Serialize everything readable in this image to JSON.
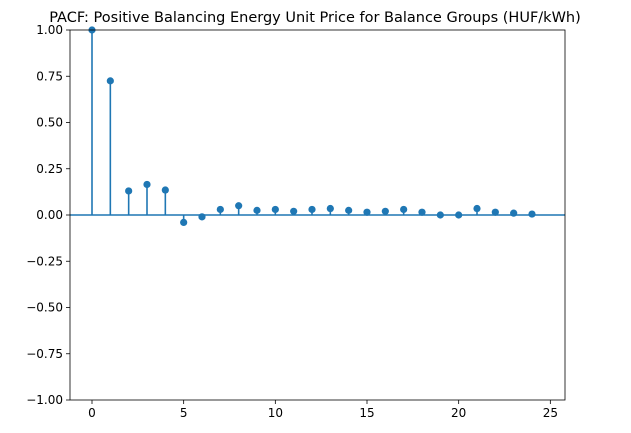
{
  "chart_data": {
    "type": "stem",
    "title": "PACF: Positive Balancing Energy Unit Price for Balance Groups (HUF/kWh)",
    "xlabel": "",
    "ylabel": "",
    "xlim": [
      -1.2,
      25.8
    ],
    "ylim": [
      -1.0,
      1.0
    ],
    "x_ticks": [
      0,
      5,
      10,
      15,
      20,
      25
    ],
    "y_ticks": [
      1.0,
      0.75,
      0.5,
      0.25,
      0.0,
      -0.25,
      -0.5,
      -0.75,
      -1.0
    ],
    "x_tick_labels": [
      "0",
      "5",
      "10",
      "15",
      "20",
      "25"
    ],
    "y_tick_labels": [
      "1.00",
      "0.75",
      "0.50",
      "0.25",
      "0.00",
      "−0.25",
      "−0.50",
      "−0.75",
      "−1.00"
    ],
    "grid": false,
    "legend": "none",
    "baseline": 0,
    "colors": {
      "series": "#1f77b4",
      "axes": "#000000"
    },
    "series": [
      {
        "x": [
          0,
          1,
          2,
          3,
          4,
          5,
          6,
          7,
          8,
          9,
          10,
          11,
          12,
          13,
          14,
          15,
          16,
          17,
          18,
          19,
          20,
          21,
          22,
          23,
          24
        ],
        "values": [
          1.0,
          0.725,
          0.13,
          0.165,
          0.135,
          -0.04,
          -0.01,
          0.03,
          0.05,
          0.025,
          0.03,
          0.02,
          0.03,
          0.035,
          0.025,
          0.015,
          0.02,
          0.03,
          0.015,
          0.0,
          0.0,
          0.035,
          0.015,
          0.01,
          0.005
        ]
      }
    ]
  }
}
